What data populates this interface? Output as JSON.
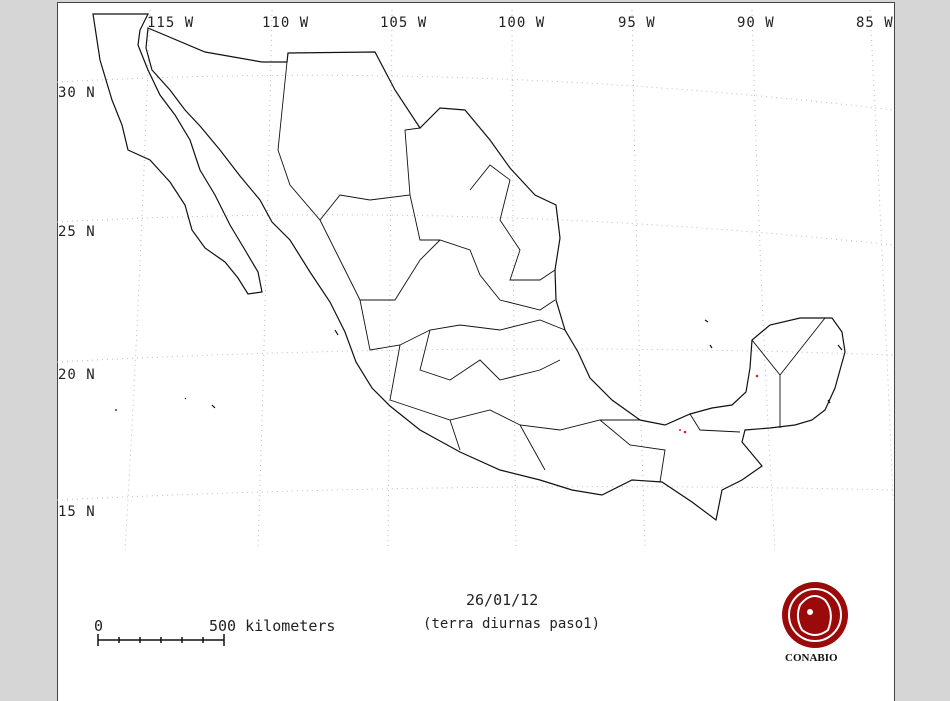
{
  "map": {
    "longitude_labels": [
      "115 W",
      "110 W",
      "105 W",
      "100 W",
      "95 W",
      "90 W",
      "85 W"
    ],
    "latitude_labels": [
      "30 N",
      "25 N",
      "20 N",
      "15 N"
    ],
    "graticule": "dotted",
    "outline_color": "#000000",
    "fire_points_color": "#e02020"
  },
  "date": "26/01/12",
  "subtitle": "(terra diurnas paso1)",
  "scale_bar": {
    "start_label": "0",
    "end_label": "500 kilometers"
  },
  "logo": {
    "text": "CONABIO",
    "color": "#9b0a0a"
  }
}
